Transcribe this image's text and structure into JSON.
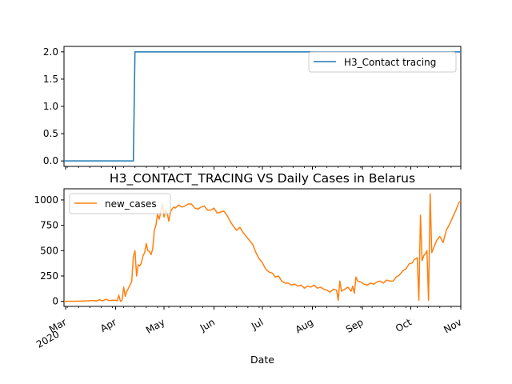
{
  "chart_data": [
    {
      "type": "line",
      "title": "",
      "xlabel": "",
      "ylabel": "",
      "ylim": [
        -0.1,
        2.1
      ],
      "yticks": [
        "0.0",
        "0.5",
        "1.0",
        "1.5",
        "2.0"
      ],
      "ytick_values": [
        0,
        0.5,
        1.0,
        1.5,
        2.0
      ],
      "legend_position": "upper right",
      "series": [
        {
          "name": "H3_Contact tracing",
          "color": "#1f77b4",
          "x": [
            "2020-02-29",
            "2020-04-12",
            "2020-04-13",
            "2020-11-01"
          ],
          "values": [
            0,
            0,
            2,
            2
          ]
        }
      ]
    },
    {
      "type": "line",
      "title": "H3_CONTACT_TRACING VS Daily Cases in Belarus",
      "xlabel": "Date",
      "ylabel": "",
      "ylim": [
        -50,
        1110
      ],
      "yticks": [
        "0",
        "250",
        "500",
        "750",
        "1000"
      ],
      "ytick_values": [
        0,
        250,
        500,
        750,
        1000
      ],
      "xlim": [
        "2020-02-29",
        "2020-11-01"
      ],
      "xticks": [
        {
          "date": "2020-03-01",
          "label": "Mar",
          "sublabel": "2020"
        },
        {
          "date": "2020-04-01",
          "label": "Apr"
        },
        {
          "date": "2020-05-01",
          "label": "May"
        },
        {
          "date": "2020-06-01",
          "label": "Jun"
        },
        {
          "date": "2020-07-01",
          "label": "Jul"
        },
        {
          "date": "2020-08-01",
          "label": "Aug"
        },
        {
          "date": "2020-09-01",
          "label": "Sep"
        },
        {
          "date": "2020-10-01",
          "label": "Oct"
        },
        {
          "date": "2020-11-01",
          "label": "Nov"
        }
      ],
      "legend_position": "upper left",
      "series": [
        {
          "name": "new_cases",
          "color": "#ff7f0e",
          "points": [
            [
              "2020-02-29",
              0
            ],
            [
              "2020-03-05",
              0
            ],
            [
              "2020-03-10",
              2
            ],
            [
              "2020-03-15",
              5
            ],
            [
              "2020-03-18",
              8
            ],
            [
              "2020-03-20",
              3
            ],
            [
              "2020-03-22",
              15
            ],
            [
              "2020-03-24",
              5
            ],
            [
              "2020-03-26",
              20
            ],
            [
              "2020-03-28",
              8
            ],
            [
              "2020-03-30",
              10
            ],
            [
              "2020-04-01",
              10
            ],
            [
              "2020-04-02",
              5
            ],
            [
              "2020-04-03",
              60
            ],
            [
              "2020-04-04",
              0
            ],
            [
              "2020-04-05",
              10
            ],
            [
              "2020-04-06",
              140
            ],
            [
              "2020-04-07",
              50
            ],
            [
              "2020-04-08",
              100
            ],
            [
              "2020-04-09",
              130
            ],
            [
              "2020-04-10",
              160
            ],
            [
              "2020-04-11",
              200
            ],
            [
              "2020-04-12",
              440
            ],
            [
              "2020-04-13",
              500
            ],
            [
              "2020-04-14",
              250
            ],
            [
              "2020-04-15",
              360
            ],
            [
              "2020-04-16",
              350
            ],
            [
              "2020-04-17",
              380
            ],
            [
              "2020-04-18",
              450
            ],
            [
              "2020-04-19",
              480
            ],
            [
              "2020-04-20",
              570
            ],
            [
              "2020-04-21",
              500
            ],
            [
              "2020-04-22",
              490
            ],
            [
              "2020-04-23",
              460
            ],
            [
              "2020-04-24",
              520
            ],
            [
              "2020-04-25",
              700
            ],
            [
              "2020-04-26",
              750
            ],
            [
              "2020-04-27",
              860
            ],
            [
              "2020-04-28",
              810
            ],
            [
              "2020-04-29",
              880
            ],
            [
              "2020-04-30",
              960
            ],
            [
              "2020-05-01",
              830
            ],
            [
              "2020-05-02",
              900
            ],
            [
              "2020-05-03",
              870
            ],
            [
              "2020-05-04",
              790
            ],
            [
              "2020-05-05",
              880
            ],
            [
              "2020-05-06",
              910
            ],
            [
              "2020-05-07",
              930
            ],
            [
              "2020-05-08",
              920
            ],
            [
              "2020-05-10",
              950
            ],
            [
              "2020-05-12",
              930
            ],
            [
              "2020-05-14",
              940
            ],
            [
              "2020-05-16",
              960
            ],
            [
              "2020-05-18",
              960
            ],
            [
              "2020-05-20",
              920
            ],
            [
              "2020-05-22",
              910
            ],
            [
              "2020-05-24",
              930
            ],
            [
              "2020-05-26",
              940
            ],
            [
              "2020-05-28",
              900
            ],
            [
              "2020-05-30",
              900
            ],
            [
              "2020-06-01",
              920
            ],
            [
              "2020-06-03",
              870
            ],
            [
              "2020-06-05",
              880
            ],
            [
              "2020-06-07",
              890
            ],
            [
              "2020-06-09",
              850
            ],
            [
              "2020-06-11",
              790
            ],
            [
              "2020-06-13",
              740
            ],
            [
              "2020-06-15",
              700
            ],
            [
              "2020-06-17",
              730
            ],
            [
              "2020-06-19",
              680
            ],
            [
              "2020-06-21",
              640
            ],
            [
              "2020-06-23",
              600
            ],
            [
              "2020-06-25",
              560
            ],
            [
              "2020-06-27",
              480
            ],
            [
              "2020-06-29",
              420
            ],
            [
              "2020-07-01",
              380
            ],
            [
              "2020-07-03",
              320
            ],
            [
              "2020-07-05",
              290
            ],
            [
              "2020-07-07",
              280
            ],
            [
              "2020-07-09",
              240
            ],
            [
              "2020-07-11",
              250
            ],
            [
              "2020-07-13",
              200
            ],
            [
              "2020-07-15",
              180
            ],
            [
              "2020-07-17",
              180
            ],
            [
              "2020-07-19",
              160
            ],
            [
              "2020-07-21",
              170
            ],
            [
              "2020-07-23",
              150
            ],
            [
              "2020-07-25",
              160
            ],
            [
              "2020-07-27",
              130
            ],
            [
              "2020-07-29",
              150
            ],
            [
              "2020-07-31",
              140
            ],
            [
              "2020-08-02",
              160
            ],
            [
              "2020-08-04",
              130
            ],
            [
              "2020-08-06",
              140
            ],
            [
              "2020-08-08",
              120
            ],
            [
              "2020-08-10",
              110
            ],
            [
              "2020-08-12",
              90
            ],
            [
              "2020-08-14",
              120
            ],
            [
              "2020-08-16",
              110
            ],
            [
              "2020-08-17",
              10
            ],
            [
              "2020-08-18",
              200
            ],
            [
              "2020-08-19",
              100
            ],
            [
              "2020-08-21",
              120
            ],
            [
              "2020-08-23",
              140
            ],
            [
              "2020-08-25",
              100
            ],
            [
              "2020-08-26",
              150
            ],
            [
              "2020-08-27",
              80
            ],
            [
              "2020-08-28",
              240
            ],
            [
              "2020-08-29",
              200
            ],
            [
              "2020-08-31",
              190
            ],
            [
              "2020-09-02",
              170
            ],
            [
              "2020-09-04",
              160
            ],
            [
              "2020-09-06",
              180
            ],
            [
              "2020-09-08",
              170
            ],
            [
              "2020-09-10",
              190
            ],
            [
              "2020-09-12",
              200
            ],
            [
              "2020-09-14",
              180
            ],
            [
              "2020-09-16",
              210
            ],
            [
              "2020-09-18",
              200
            ],
            [
              "2020-09-20",
              200
            ],
            [
              "2020-09-22",
              240
            ],
            [
              "2020-09-24",
              260
            ],
            [
              "2020-09-26",
              300
            ],
            [
              "2020-09-28",
              320
            ],
            [
              "2020-09-30",
              370
            ],
            [
              "2020-10-02",
              380
            ],
            [
              "2020-10-03",
              410
            ],
            [
              "2020-10-05",
              430
            ],
            [
              "2020-10-06",
              10
            ],
            [
              "2020-10-07",
              850
            ],
            [
              "2020-10-08",
              400
            ],
            [
              "2020-10-09",
              450
            ],
            [
              "2020-10-10",
              470
            ],
            [
              "2020-10-11",
              500
            ],
            [
              "2020-10-12",
              10
            ],
            [
              "2020-10-13",
              1060
            ],
            [
              "2020-10-14",
              480
            ],
            [
              "2020-10-15",
              520
            ],
            [
              "2020-10-17",
              600
            ],
            [
              "2020-10-19",
              640
            ],
            [
              "2020-10-21",
              580
            ],
            [
              "2020-10-23",
              700
            ],
            [
              "2020-10-25",
              760
            ],
            [
              "2020-10-27",
              830
            ],
            [
              "2020-10-29",
              900
            ],
            [
              "2020-10-31",
              980
            ],
            [
              "2020-11-01",
              985
            ]
          ]
        }
      ]
    }
  ]
}
